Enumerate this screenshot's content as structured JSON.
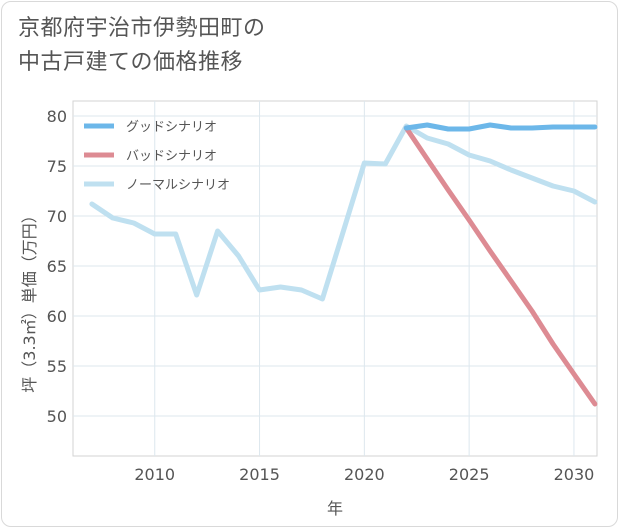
{
  "title": {
    "line1": "京都府宇治市伊勢田町の",
    "line2": "中古戸建ての価格推移"
  },
  "chart_data": {
    "type": "line",
    "xlabel": "年",
    "ylabel": "坪（3.3㎡）単価（万円）",
    "xlim": [
      2006.1,
      2031.1
    ],
    "ylim": [
      46,
      81.5
    ],
    "x_ticks": [
      2010,
      2015,
      2020,
      2025,
      2030
    ],
    "y_ticks": [
      50,
      55,
      60,
      65,
      70,
      75,
      80
    ],
    "grid": true,
    "legend_position": "top-left",
    "series": [
      {
        "name": "グッドシナリオ",
        "color": "#6cb7e9",
        "x": [
          2022,
          2023,
          2024,
          2025,
          2026,
          2027,
          2028,
          2029,
          2030,
          2031
        ],
        "y": [
          78.8,
          79.1,
          78.7,
          78.7,
          79.1,
          78.8,
          78.8,
          78.9,
          78.9,
          78.9
        ]
      },
      {
        "name": "バッドシナリオ",
        "color": "#dd8b93",
        "x": [
          2022,
          2023,
          2024,
          2025,
          2026,
          2027,
          2028,
          2029,
          2030,
          2031
        ],
        "y": [
          78.8,
          75.7,
          72.6,
          69.6,
          66.5,
          63.5,
          60.5,
          57.2,
          54.2,
          51.2
        ]
      },
      {
        "name": "ノーマルシナリオ",
        "color": "#bfe0f0",
        "x": [
          2007,
          2008,
          2009,
          2010,
          2011,
          2012,
          2013,
          2014,
          2015,
          2016,
          2017,
          2018,
          2019,
          2020,
          2021,
          2022,
          2023,
          2024,
          2025,
          2026,
          2027,
          2028,
          2029,
          2030,
          2031
        ],
        "y": [
          71.2,
          69.8,
          69.3,
          68.2,
          68.2,
          62.1,
          68.5,
          66.0,
          62.6,
          62.9,
          62.6,
          61.7,
          68.5,
          75.3,
          75.2,
          79.0,
          77.8,
          77.2,
          76.1,
          75.5,
          74.6,
          73.8,
          73.0,
          72.5,
          71.4
        ]
      }
    ]
  }
}
